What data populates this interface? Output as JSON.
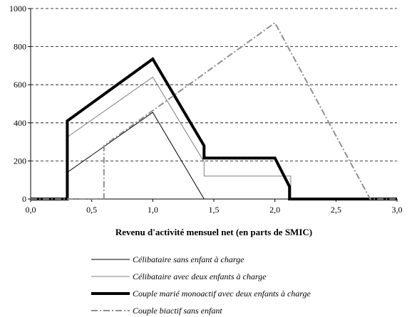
{
  "chart_data": {
    "type": "line",
    "xlabel": "Revenu d'activité mensuel net (en parts de SMIC)",
    "ylabel": "",
    "xlim": [
      0,
      3
    ],
    "ylim": [
      0,
      1000
    ],
    "x_ticks": [
      0,
      0.5,
      1,
      1.5,
      2,
      2.5,
      3
    ],
    "x_tick_labels": [
      "0,0",
      "0,5",
      "1,0",
      "1,5",
      "2,0",
      "2,5",
      "3,0"
    ],
    "y_ticks": [
      0,
      200,
      400,
      600,
      800,
      1000
    ],
    "y_tick_labels": [
      "0",
      "200",
      "400",
      "600",
      "800",
      "1000"
    ],
    "grid": "horizontal-dashed",
    "legend_position": "bottom",
    "series": [
      {
        "name": "Célibataire sans enfant à charge",
        "color": "#000000",
        "style": "thin-solid",
        "points": [
          [
            0,
            0
          ],
          [
            0.3,
            0
          ],
          [
            0.3,
            140
          ],
          [
            1.0,
            455
          ],
          [
            1.42,
            0
          ],
          [
            3.0,
            0
          ]
        ]
      },
      {
        "name": "Célibataire avec deux enfants à charge",
        "color": "#808080",
        "style": "thin-solid",
        "points": [
          [
            0,
            0
          ],
          [
            0.3,
            0
          ],
          [
            0.3,
            325
          ],
          [
            1.0,
            640
          ],
          [
            1.42,
            195
          ],
          [
            1.42,
            120
          ],
          [
            2.13,
            120
          ],
          [
            2.13,
            0
          ],
          [
            3.0,
            0
          ]
        ]
      },
      {
        "name": "Couple marié monoactif avec deux enfants à charge",
        "color": "#000000",
        "style": "thick-solid",
        "points": [
          [
            0,
            0
          ],
          [
            0.3,
            0
          ],
          [
            0.3,
            410
          ],
          [
            1.0,
            735
          ],
          [
            1.42,
            280
          ],
          [
            1.42,
            215
          ],
          [
            2.0,
            215
          ],
          [
            2.12,
            65
          ],
          [
            2.12,
            0
          ],
          [
            3.0,
            0
          ]
        ]
      },
      {
        "name": "Couple biactif sans enfant",
        "color": "#909090",
        "style": "dash-dot",
        "points": [
          [
            0,
            0
          ],
          [
            0.6,
            0
          ],
          [
            0.6,
            280
          ],
          [
            2.0,
            925
          ],
          [
            2.78,
            0
          ],
          [
            3.0,
            0
          ]
        ]
      }
    ]
  }
}
